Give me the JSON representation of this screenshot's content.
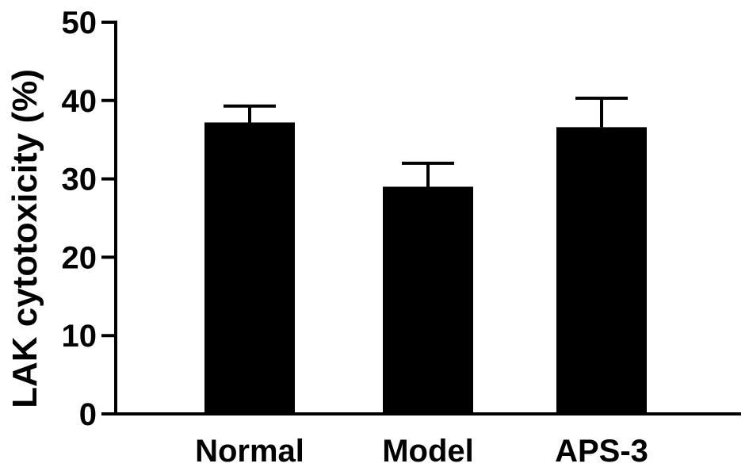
{
  "chart_data": {
    "type": "bar",
    "title": "",
    "xlabel": "",
    "ylabel": "LAK cytotoxicity (%)",
    "categories": [
      "Normal",
      "Model",
      "APS-3"
    ],
    "values": [
      37.2,
      29.0,
      36.6
    ],
    "error_upper": [
      2.1,
      3.0,
      3.7
    ],
    "ylim": [
      0,
      50
    ],
    "yticks": [
      0,
      10,
      20,
      30,
      40,
      50
    ],
    "ytick_labels": [
      "0",
      "10",
      "20",
      "30",
      "40",
      "50"
    ],
    "grid": false,
    "legend": "none",
    "bar_color": "#000000",
    "axis_color": "#000000"
  }
}
